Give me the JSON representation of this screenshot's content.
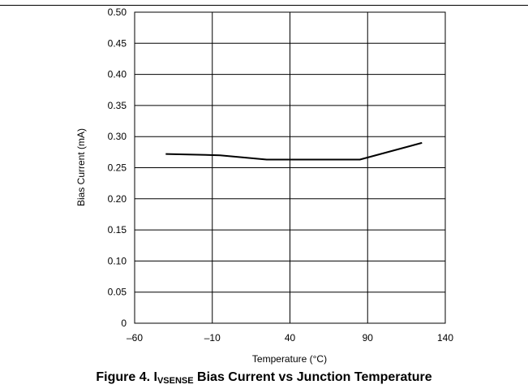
{
  "chart_data": {
    "type": "line",
    "title": "",
    "xlabel": "Temperature (°C)",
    "ylabel": "Bias Current (mA)",
    "xlim": [
      -60,
      140
    ],
    "ylim": [
      0,
      0.5
    ],
    "x_ticks": [
      "–60",
      "–10",
      "40",
      "90",
      "140"
    ],
    "x_tick_values": [
      -60,
      -10,
      40,
      90,
      140
    ],
    "y_ticks": [
      "0",
      "0.05",
      "0.10",
      "0.15",
      "0.20",
      "0.25",
      "0.30",
      "0.35",
      "0.40",
      "0.45",
      "0.50"
    ],
    "y_tick_values": [
      0,
      0.05,
      0.1,
      0.15,
      0.2,
      0.25,
      0.3,
      0.35,
      0.4,
      0.45,
      0.5
    ],
    "grid": true,
    "series": [
      {
        "x": [
          -40,
          -5,
          25,
          85,
          125
        ],
        "y": [
          0.272,
          0.27,
          0.263,
          0.263,
          0.29
        ]
      }
    ],
    "color": "#000000"
  },
  "caption": {
    "prefix": "Figure 4. I",
    "subscript": "VSENSE",
    "suffix": " Bias Current vs Junction Temperature"
  }
}
